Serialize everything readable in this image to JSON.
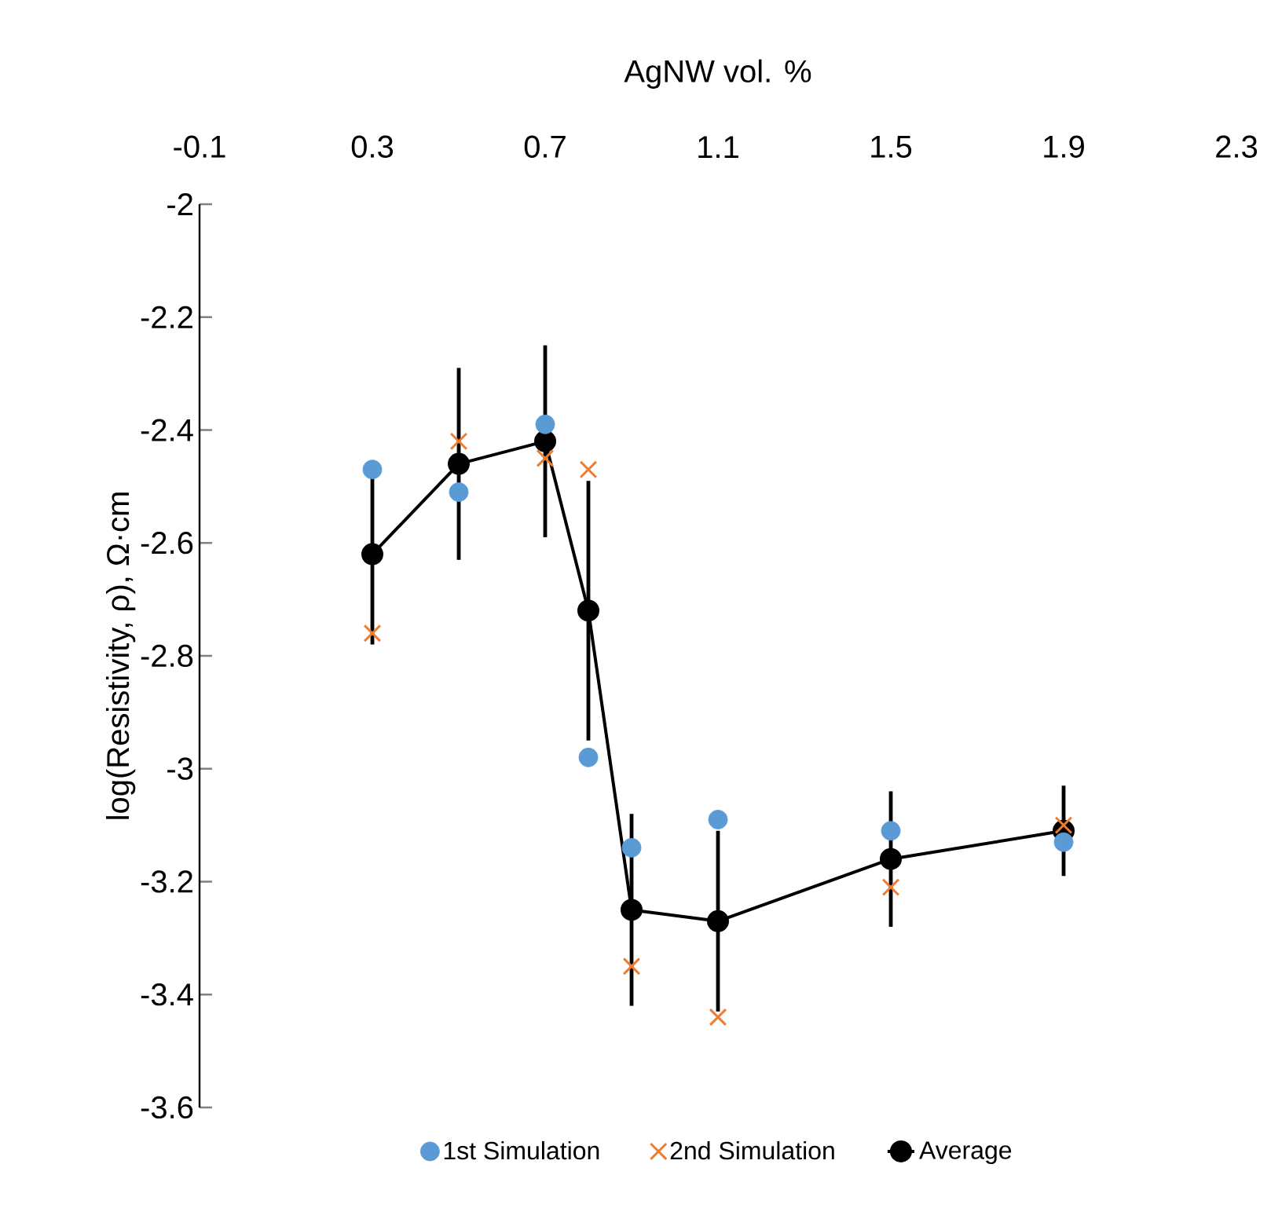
{
  "chart_data": {
    "type": "scatter",
    "xlabel": "AgNW vol. %",
    "ylabel": "log(Resistivity, ρ), Ω·cm",
    "x": [
      0.3,
      0.5,
      0.7,
      0.8,
      0.9,
      1.1,
      1.5,
      1.9
    ],
    "xlim": [
      -0.1,
      2.3
    ],
    "xticks": [
      -0.1,
      0.3,
      0.7,
      1.1,
      1.5,
      1.9,
      2.3
    ],
    "ylim": [
      -3.6,
      -2
    ],
    "yticks": [
      -3.6,
      -3.4,
      -3.2,
      -3,
      -2.8,
      -2.6,
      -2.4,
      -2.2,
      -2
    ],
    "legend": "bottom",
    "series": [
      {
        "name": "1st Simulation",
        "marker": "circle",
        "color": "#5b9bd5",
        "values": [
          -2.47,
          -2.51,
          -2.39,
          -2.98,
          -3.14,
          -3.09,
          -3.11,
          -3.13
        ]
      },
      {
        "name": "2nd Simulation",
        "marker": "cross",
        "color": "#ed7d31",
        "values": [
          -2.76,
          -2.42,
          -2.45,
          -2.47,
          -3.35,
          -3.44,
          -3.21,
          -3.1
        ]
      },
      {
        "name": "Average",
        "type": "line",
        "marker": "circle",
        "line_style": "solid",
        "color": "#000000",
        "values": [
          -2.62,
          -2.46,
          -2.42,
          -2.72,
          -3.25,
          -3.27,
          -3.16,
          -3.11
        ],
        "errors": [
          0.16,
          0.17,
          0.17,
          0.23,
          0.17,
          0.16,
          0.12,
          0.08
        ]
      }
    ]
  }
}
